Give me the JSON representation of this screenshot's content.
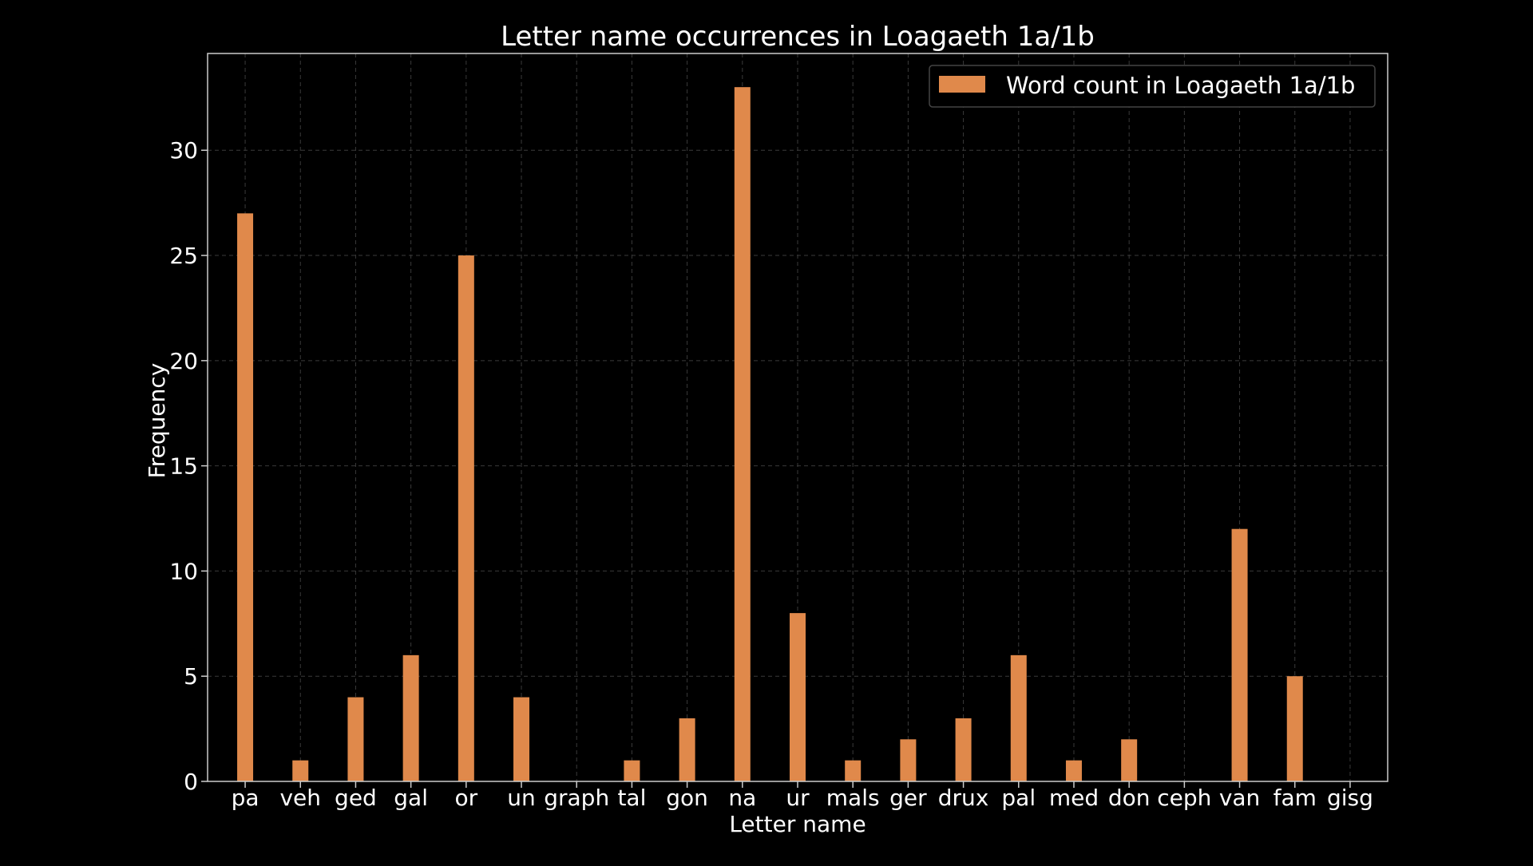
{
  "chart_data": {
    "type": "bar",
    "title": "Letter name occurrences in Loagaeth 1a/1b",
    "xlabel": "Letter name",
    "ylabel": "Frequency",
    "categories": [
      "pa",
      "veh",
      "ged",
      "gal",
      "or",
      "un",
      "graph",
      "tal",
      "gon",
      "na",
      "ur",
      "mals",
      "ger",
      "drux",
      "pal",
      "med",
      "don",
      "ceph",
      "van",
      "fam",
      "gisg"
    ],
    "series": [
      {
        "name": "Word count in Loagaeth 1a/1b",
        "values": [
          27,
          1,
          4,
          6,
          25,
          4,
          0,
          1,
          3,
          33,
          8,
          1,
          2,
          3,
          6,
          1,
          2,
          0,
          12,
          5,
          0
        ],
        "color": "#E0894B"
      }
    ],
    "ylim": [
      0,
      34.6
    ],
    "yticks": [
      0,
      5,
      10,
      15,
      20,
      25,
      30
    ],
    "grid": true,
    "legend_position": "top-right",
    "background": "#000000",
    "axis_color": "#cccccc"
  }
}
